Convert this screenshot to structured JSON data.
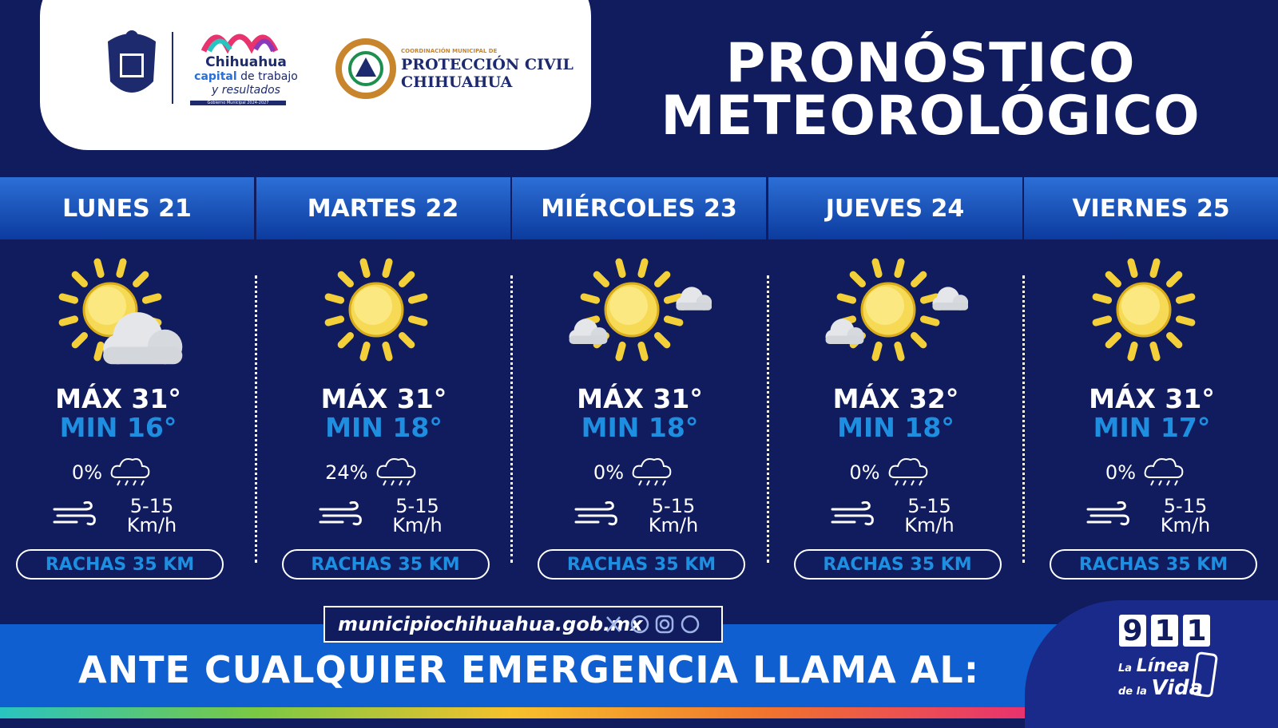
{
  "header": {
    "logo": {
      "line1": "Chihuahua",
      "line2a": "capital",
      "line2b": "de trabajo",
      "line3": "y resultados",
      "line4": "Gobierno Municipal 2024-2027"
    },
    "civil_protection": {
      "kicker": "COORDINACIÓN MUNICIPAL DE",
      "line1": "PROTECCIÓN CIVIL",
      "line2": "CHIHUAHUA"
    },
    "title": [
      "PRONÓSTICO",
      "METEOROLÓGICO"
    ]
  },
  "days": [
    {
      "day": "LUNES 21",
      "max": "MÁX 31°",
      "min": "MIN 16°",
      "rain": "0%",
      "wind": "5-15",
      "wind_unit": "Km/h",
      "gusts": "RACHAS 35 KM"
    },
    {
      "day": "MARTES 22",
      "max": "MÁX 31°",
      "min": "MIN 18°",
      "rain": "24%",
      "wind": "5-15",
      "wind_unit": "Km/h",
      "gusts": "RACHAS 35 KM"
    },
    {
      "day": "MIÉRCOLES 23",
      "max": "MÁX 31°",
      "min": "MIN 18°",
      "rain": "0%",
      "wind": "5-15",
      "wind_unit": "Km/h",
      "gusts": "RACHAS 35 KM"
    },
    {
      "day": "JUEVES 24",
      "max": "MÁX 32°",
      "min": "MIN 18°",
      "rain": "0%",
      "wind": "5-15",
      "wind_unit": "Km/h",
      "gusts": "RACHAS 35 KM"
    },
    {
      "day": "VIERNES 25",
      "max": "MÁX 31°",
      "min": "MIN 17°",
      "rain": "0%",
      "wind": "5-15",
      "wind_unit": "Km/h",
      "gusts": "RACHAS 35 KM"
    }
  ],
  "footer": {
    "website": "municipiochihuahua.gob.mx",
    "emergency": "ANTE CUALQUIER EMERGENCIA LLAMA AL:",
    "number": [
      "9",
      "1",
      "1"
    ],
    "tagline_small1": "La",
    "tagline_big1": "Línea",
    "tagline_small2": "de la",
    "tagline_big2": "Vida"
  }
}
